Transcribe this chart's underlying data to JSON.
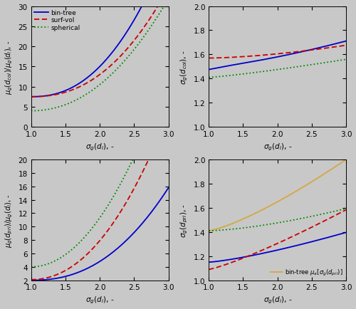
{
  "x_range": [
    1.0,
    3.0
  ],
  "n_points": 300,
  "bg_color": "#c8c8c8",
  "colors": {
    "bin_tree": "#0000cc",
    "surf_vol": "#cc0000",
    "spherical": "#008800",
    "gold": "#d4a843"
  },
  "top_left": {
    "ylabel": "$\\mu_g(d_{col}) / \\mu_g(d_i)$, -",
    "xlabel": "$\\sigma_g(d_i)$, -",
    "ylim": [
      0,
      30
    ],
    "yticks": [
      0,
      5,
      10,
      15,
      20,
      25,
      30
    ],
    "xlim": [
      1,
      3
    ],
    "xticks": [
      1,
      1.5,
      2,
      2.5,
      3
    ]
  },
  "top_right": {
    "ylabel": "$\\sigma_g(d_{col})$, -",
    "xlabel": "$\\sigma_g(d_i)$, -",
    "ylim": [
      1.0,
      2.0
    ],
    "yticks": [
      1.0,
      1.2,
      1.4,
      1.6,
      1.8,
      2.0
    ],
    "xlim": [
      1,
      3
    ],
    "xticks": [
      1,
      1.5,
      2,
      2.5,
      3
    ]
  },
  "bottom_left": {
    "ylabel": "$\\mu_g(d_{pri}) / \\mu_g(d_i)$, -",
    "xlabel": "$\\sigma_g(d_i)$, -",
    "ylim": [
      2,
      20
    ],
    "yticks": [
      2,
      4,
      6,
      8,
      10,
      12,
      14,
      16,
      18,
      20
    ],
    "xlim": [
      1,
      3
    ],
    "xticks": [
      1,
      1.5,
      2,
      2.5,
      3
    ]
  },
  "bottom_right": {
    "ylabel": "$\\sigma_g(d_{pri})$, -",
    "xlabel": "$\\sigma_g(d_i)$, -",
    "ylim": [
      1.0,
      2.0
    ],
    "yticks": [
      1.0,
      1.2,
      1.4,
      1.6,
      1.8,
      2.0
    ],
    "xlim": [
      1,
      3
    ],
    "xticks": [
      1,
      1.5,
      2,
      2.5,
      3
    ],
    "legend_label": "bin-tree $\\mu_a[\\sigma_g(d_{pri})]$"
  }
}
